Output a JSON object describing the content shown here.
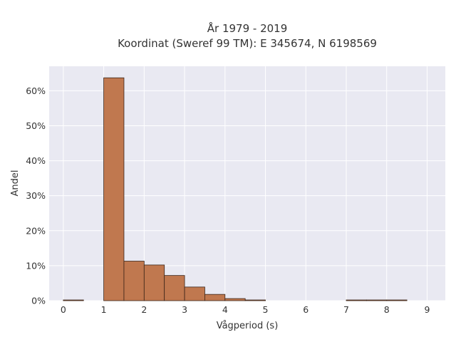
{
  "chart_data": {
    "type": "bar",
    "title": "År 1979 - 2019",
    "subtitle": "Koordinat (Sweref 99 TM): E 345674, N 6198569",
    "xlabel": "Vågperiod (s)",
    "ylabel": "Andel",
    "xlim": [
      -0.35,
      9.45
    ],
    "ylim": [
      0,
      0.67
    ],
    "x_ticks": [
      0,
      1,
      2,
      3,
      4,
      5,
      6,
      7,
      8,
      9
    ],
    "y_ticks": [
      0,
      0.1,
      0.2,
      0.3,
      0.4,
      0.5,
      0.6
    ],
    "y_tick_labels": [
      "0%",
      "10%",
      "20%",
      "30%",
      "40%",
      "50%",
      "60%"
    ],
    "grid": true,
    "bar_color": "#c0784f",
    "bar_edge_color": "#3a2418",
    "plot_background": "#e9e9f2",
    "bins": [
      {
        "x0": 0.0,
        "x1": 0.5,
        "value": 0.002
      },
      {
        "x0": 1.0,
        "x1": 1.5,
        "value": 0.637
      },
      {
        "x0": 1.5,
        "x1": 2.0,
        "value": 0.113
      },
      {
        "x0": 2.0,
        "x1": 2.5,
        "value": 0.102
      },
      {
        "x0": 2.5,
        "x1": 3.0,
        "value": 0.072
      },
      {
        "x0": 3.0,
        "x1": 3.5,
        "value": 0.039
      },
      {
        "x0": 3.5,
        "x1": 4.0,
        "value": 0.018
      },
      {
        "x0": 4.0,
        "x1": 4.5,
        "value": 0.006
      },
      {
        "x0": 4.5,
        "x1": 5.0,
        "value": 0.001
      },
      {
        "x0": 7.0,
        "x1": 7.5,
        "value": 0.0005
      },
      {
        "x0": 7.5,
        "x1": 8.0,
        "value": 0.0005
      },
      {
        "x0": 8.0,
        "x1": 8.5,
        "value": 0.0005
      }
    ]
  }
}
